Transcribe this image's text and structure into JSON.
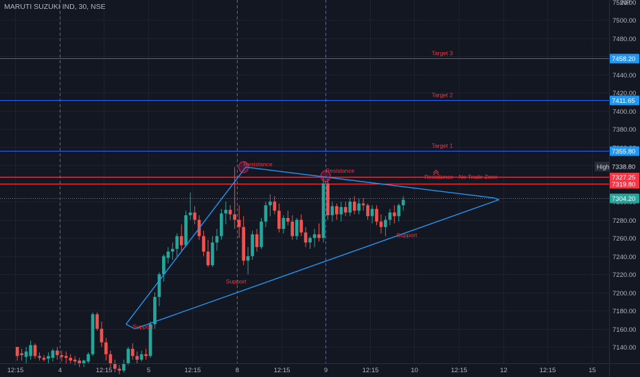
{
  "header": {
    "symbol_line": "MARUTI SUZUKI IND, 30, NSE",
    "currency": "INR"
  },
  "chart_data": {
    "type": "candlestick",
    "ylim": [
      7122,
      7522
    ],
    "y_ticks": [
      7140,
      7160,
      7180,
      7200,
      7220,
      7240,
      7260,
      7280,
      7300,
      7320,
      7340,
      7360,
      7380,
      7400,
      7420,
      7440,
      7460,
      7480,
      7500
    ],
    "y_tick_labels": [
      "7140.00",
      "7160.00",
      "7180.00",
      "7200.00",
      "7220.00",
      "7240.00",
      "7260.00",
      "7280.00",
      "7300.00",
      "7320.00",
      "7340.00",
      "7360.00",
      "7380.00",
      "7400.00",
      "7420.00",
      "7440.00",
      "7460.00",
      "7480.00",
      "7500.00"
    ],
    "top_partial_label": "7520.00",
    "x_labels": [
      {
        "label": "12:15",
        "i": -0.5
      },
      {
        "label": "4",
        "i": 9.5
      },
      {
        "label": "12:15",
        "i": 19.5
      },
      {
        "label": "5",
        "i": 29.5
      },
      {
        "label": "12:15",
        "i": 39.5
      },
      {
        "label": "8",
        "i": 49.5
      },
      {
        "label": "12:15",
        "i": 59.5
      },
      {
        "label": "9",
        "i": 69.5
      },
      {
        "label": "12:15",
        "i": 79.5
      },
      {
        "label": "10",
        "i": 89.5
      },
      {
        "label": "12:15",
        "i": 99.5
      },
      {
        "label": "12",
        "i": 109.5
      },
      {
        "label": "12:15",
        "i": 119.5
      },
      {
        "label": "15",
        "i": 129.5
      }
    ],
    "x_domain": [
      -3.9,
      133.4
    ],
    "day_separators": [
      9.5,
      49.5,
      69.5
    ],
    "candles": [
      [
        7140,
        7140,
        7125,
        7130
      ],
      [
        7133,
        7138,
        7125,
        7131
      ],
      [
        7129,
        7140,
        7122,
        7135
      ],
      [
        7130,
        7147,
        7126,
        7142
      ],
      [
        7142,
        7144,
        7127,
        7130
      ],
      [
        7130,
        7134,
        7125,
        7128
      ],
      [
        7128,
        7131,
        7124,
        7126
      ],
      [
        7127,
        7134,
        7122,
        7130
      ],
      [
        7128,
        7138,
        7124,
        7136
      ],
      [
        7136,
        7140,
        7126,
        7131
      ],
      [
        7131,
        7136,
        7124,
        7129
      ],
      [
        7130,
        7135,
        7122,
        7128
      ],
      [
        7128,
        7132,
        7122,
        7125
      ],
      [
        7126,
        7130,
        7120,
        7124
      ],
      [
        7125,
        7128,
        7118,
        7122
      ],
      [
        7122,
        7126,
        7118,
        7125
      ],
      [
        7124,
        7134,
        7122,
        7132
      ],
      [
        7132,
        7178,
        7130,
        7176
      ],
      [
        7176,
        7178,
        7158,
        7160
      ],
      [
        7160,
        7168,
        7140,
        7145
      ],
      [
        7145,
        7150,
        7125,
        7132
      ],
      [
        7132,
        7136,
        7118,
        7122
      ],
      [
        7122,
        7126,
        7112,
        7116
      ],
      [
        7116,
        7120,
        7110,
        7114
      ],
      [
        7114,
        7126,
        7112,
        7122
      ],
      [
        7122,
        7140,
        7120,
        7138
      ],
      [
        7138,
        7144,
        7126,
        7130
      ],
      [
        7130,
        7135,
        7122,
        7126
      ],
      [
        7126,
        7136,
        7124,
        7132
      ],
      [
        7132,
        7138,
        7126,
        7130
      ],
      [
        7130,
        7168,
        7128,
        7165
      ],
      [
        7165,
        7200,
        7160,
        7195
      ],
      [
        7195,
        7222,
        7185,
        7220
      ],
      [
        7220,
        7242,
        7212,
        7240
      ],
      [
        7238,
        7250,
        7232,
        7245
      ],
      [
        7245,
        7255,
        7236,
        7248
      ],
      [
        7248,
        7265,
        7240,
        7262
      ],
      [
        7262,
        7275,
        7246,
        7252
      ],
      [
        7252,
        7290,
        7250,
        7285
      ],
      [
        7285,
        7310,
        7280,
        7288
      ],
      [
        7288,
        7295,
        7275,
        7280
      ],
      [
        7280,
        7285,
        7258,
        7262
      ],
      [
        7262,
        7268,
        7240,
        7245
      ],
      [
        7245,
        7258,
        7228,
        7230
      ],
      [
        7230,
        7262,
        7228,
        7255
      ],
      [
        7255,
        7270,
        7246,
        7262
      ],
      [
        7262,
        7292,
        7258,
        7287
      ],
      [
        7287,
        7300,
        7275,
        7291
      ],
      [
        7291,
        7296,
        7280,
        7286
      ],
      [
        7286,
        7338,
        7270,
        7280
      ],
      [
        7280,
        7296,
        7260,
        7272
      ],
      [
        7272,
        7284,
        7230,
        7235
      ],
      [
        7235,
        7250,
        7220,
        7240
      ],
      [
        7240,
        7268,
        7236,
        7264
      ],
      [
        7264,
        7270,
        7245,
        7250
      ],
      [
        7250,
        7282,
        7248,
        7278
      ],
      [
        7278,
        7300,
        7272,
        7296
      ],
      [
        7296,
        7308,
        7284,
        7300
      ],
      [
        7300,
        7306,
        7286,
        7290
      ],
      [
        7290,
        7298,
        7266,
        7270
      ],
      [
        7270,
        7285,
        7265,
        7282
      ],
      [
        7282,
        7290,
        7274,
        7278
      ],
      [
        7278,
        7285,
        7258,
        7262
      ],
      [
        7262,
        7282,
        7258,
        7280
      ],
      [
        7280,
        7286,
        7262,
        7266
      ],
      [
        7266,
        7272,
        7250,
        7255
      ],
      [
        7255,
        7262,
        7248,
        7260
      ],
      [
        7260,
        7270,
        7250,
        7264
      ],
      [
        7264,
        7276,
        7256,
        7260
      ],
      [
        7260,
        7327,
        7255,
        7320
      ],
      [
        7320,
        7325,
        7280,
        7285
      ],
      [
        7285,
        7300,
        7278,
        7295
      ],
      [
        7295,
        7298,
        7280,
        7286
      ],
      [
        7286,
        7300,
        7278,
        7294
      ],
      [
        7294,
        7300,
        7284,
        7288
      ],
      [
        7288,
        7304,
        7284,
        7300
      ],
      [
        7300,
        7306,
        7286,
        7290
      ],
      [
        7290,
        7304,
        7286,
        7298
      ],
      [
        7298,
        7304,
        7290,
        7296
      ],
      [
        7296,
        7298,
        7280,
        7284
      ],
      [
        7284,
        7296,
        7276,
        7292
      ],
      [
        7292,
        7296,
        7274,
        7278
      ],
      [
        7278,
        7286,
        7265,
        7272
      ],
      [
        7272,
        7284,
        7262,
        7280
      ],
      [
        7280,
        7292,
        7274,
        7288
      ],
      [
        7288,
        7296,
        7276,
        7284
      ],
      [
        7284,
        7298,
        7278,
        7296
      ],
      [
        7296,
        7306,
        7290,
        7302
      ]
    ],
    "annotations": {
      "horizontal_lines": [
        {
          "label": "Target  3",
          "value": 7458.2,
          "value_label": "7458.20",
          "color": "#2962ff",
          "badge": "#2196f3",
          "text_color": "#f23645"
        },
        {
          "label": "Target  2",
          "value": 7411.65,
          "value_label": "7411.65",
          "color": "#2962ff",
          "badge": "#2196f3",
          "text_color": "#f23645"
        },
        {
          "label": "Target  1",
          "value": 7355.8,
          "value_label": "7355.80",
          "color": "#2962ff",
          "badge": "#2196f3",
          "text_color": "#f23645"
        }
      ],
      "high": {
        "label": "High",
        "value": 7338.8,
        "value_label": "7338.80"
      },
      "zone": {
        "upper": 7327.25,
        "upper_label": "7327.25",
        "lower": 7319.8,
        "lower_label": "7319.80",
        "color": "#f23645",
        "text": "No Trade Zone",
        "left_text": "Resistance"
      },
      "last_price": {
        "value": 7304.2,
        "value_label": "7304.20",
        "color": "#26a69a"
      },
      "text_labels": [
        {
          "text": "Resistance",
          "i": 51,
          "v": 7339
        },
        {
          "text": "Resistance",
          "i": 69.5,
          "v": 7332
        },
        {
          "text": "Support",
          "i": 26,
          "v": 7160
        },
        {
          "text": "Support",
          "i": 47,
          "v": 7210
        },
        {
          "text": "Support",
          "i": 85.5,
          "v": 7261
        }
      ],
      "triangle_outer": [
        [
          24.5,
          7165
        ],
        [
          51.5,
          7338
        ],
        [
          107.5,
          7304
        ]
      ],
      "triangle_inner": [
        [
          26.5,
          7160
        ],
        [
          108.5,
          7302
        ]
      ],
      "circles": [
        [
          51,
          7338
        ],
        [
          69.5,
          7328
        ]
      ]
    }
  }
}
